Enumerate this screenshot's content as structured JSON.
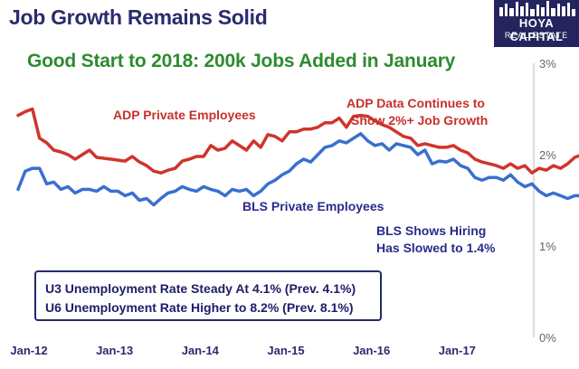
{
  "header": {
    "title": "Job Growth Remains Solid",
    "subtitle": "Good Start to 2018: 200k Jobs Added in January"
  },
  "logo": {
    "main": "HOYA CAPITAL",
    "sub": "REAL ESTATE"
  },
  "annotations": {
    "adp_label": "ADP Private Employees",
    "bls_label": "BLS Private Employees",
    "adp_note_1": "ADP Data Continues to",
    "adp_note_2": "Show 2%+ Job Growth",
    "bls_note_1": "BLS Shows Hiring",
    "bls_note_2": "Has Slowed to 1.4%"
  },
  "info_box": {
    "line1": "U3 Unemployment Rate Steady At 4.1% (Prev. 4.1%)",
    "line2": "U6 Unemployment Rate Higher to 8.2% (Prev. 8.1%)"
  },
  "colors": {
    "adp": "#d0342c",
    "bls": "#3a6fcf",
    "title": "#2b2b6e",
    "subtitle": "#2e8b2e"
  },
  "chart_data": {
    "type": "line",
    "x_tick_labels": [
      "Jan-12",
      "Jan-13",
      "Jan-14",
      "Jan-15",
      "Jan-16",
      "Jan-17"
    ],
    "y_tick_labels": [
      "0%",
      "1%",
      "2%",
      "3%"
    ],
    "ylim": [
      0,
      3
    ],
    "grid": false,
    "x_start": "2012-01",
    "x_end": "2018-01",
    "series": [
      {
        "name": "ADP Private Employees",
        "values": [
          2.43,
          2.47,
          2.5,
          2.18,
          2.13,
          2.05,
          2.03,
          2.0,
          1.95,
          2.0,
          2.05,
          1.97,
          1.96,
          1.95,
          1.94,
          1.93,
          1.98,
          1.92,
          1.88,
          1.82,
          1.8,
          1.83,
          1.85,
          1.93,
          1.95,
          1.98,
          1.98,
          2.1,
          2.05,
          2.07,
          2.15,
          2.1,
          2.05,
          2.15,
          2.08,
          2.22,
          2.2,
          2.15,
          2.25,
          2.25,
          2.28,
          2.28,
          2.3,
          2.35,
          2.35,
          2.4,
          2.3,
          2.42,
          2.43,
          2.42,
          2.37,
          2.33,
          2.3,
          2.25,
          2.2,
          2.18,
          2.1,
          2.12,
          2.1,
          2.08,
          2.08,
          2.1,
          2.05,
          2.02,
          1.95,
          1.92,
          1.9,
          1.88,
          1.85,
          1.9,
          1.85,
          1.88,
          1.8,
          1.85,
          1.83,
          1.88,
          1.85,
          1.9,
          1.97,
          2.0,
          2.07,
          2.05,
          2.0,
          1.93,
          2.03,
          2.0,
          2.08,
          2.05,
          2.07,
          2.05,
          2.05,
          2.07,
          2.04
        ]
      },
      {
        "name": "BLS Private Employees",
        "values": [
          1.62,
          1.82,
          1.85,
          1.85,
          1.68,
          1.7,
          1.62,
          1.65,
          1.58,
          1.62,
          1.62,
          1.6,
          1.65,
          1.6,
          1.6,
          1.55,
          1.58,
          1.5,
          1.52,
          1.45,
          1.52,
          1.58,
          1.6,
          1.65,
          1.62,
          1.6,
          1.65,
          1.62,
          1.6,
          1.55,
          1.62,
          1.6,
          1.62,
          1.55,
          1.6,
          1.68,
          1.72,
          1.78,
          1.82,
          1.9,
          1.95,
          1.92,
          2.0,
          2.08,
          2.1,
          2.15,
          2.13,
          2.18,
          2.23,
          2.15,
          2.1,
          2.12,
          2.05,
          2.12,
          2.1,
          2.08,
          2.0,
          2.05,
          1.9,
          1.93,
          1.92,
          1.95,
          1.88,
          1.85,
          1.75,
          1.72,
          1.75,
          1.75,
          1.72,
          1.78,
          1.7,
          1.65,
          1.68,
          1.6,
          1.55,
          1.58,
          1.55,
          1.52,
          1.55,
          1.55,
          1.45,
          1.45,
          1.42,
          1.43,
          1.42,
          1.4,
          1.38,
          1.33,
          1.37,
          1.38,
          1.42,
          1.41,
          1.4
        ]
      }
    ]
  }
}
